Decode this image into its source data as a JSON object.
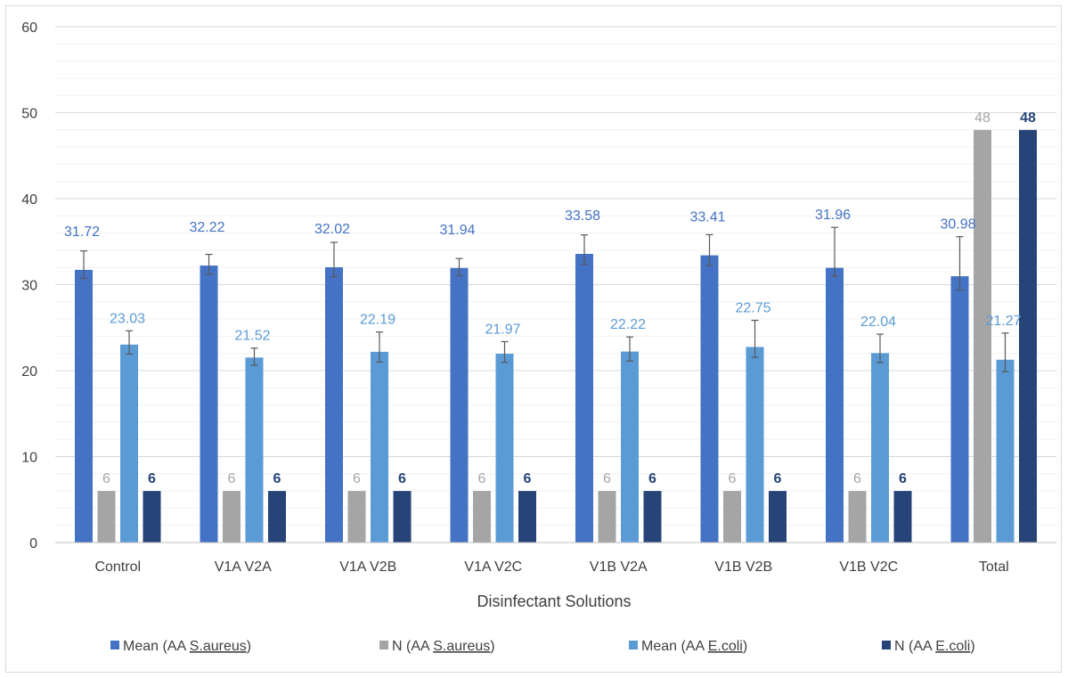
{
  "chart_data": {
    "type": "bar",
    "title": "",
    "xlabel": "Disinfectant Solutions",
    "ylabel": "",
    "ylim": [
      0,
      60
    ],
    "yticks": [
      0,
      10,
      20,
      30,
      40,
      50,
      60
    ],
    "minor_gridlines": true,
    "legend_position": "bottom",
    "categories": [
      "Control",
      "V1A V2A",
      "V1A V2B",
      "V1A V2C",
      "V1B V2A",
      "V1B V2B",
      "V1B V2C",
      "Total"
    ],
    "series": [
      {
        "name": "Mean (AA S.aureus)",
        "legend_prefix": "Mean (AA ",
        "legend_underlined": "S.aureus",
        "legend_suffix": ")",
        "color": "#4472c4",
        "label_color": "#4472c4",
        "label_bold": false,
        "values": [
          31.72,
          32.22,
          32.02,
          31.94,
          33.58,
          33.41,
          31.96,
          30.98
        ],
        "labels": [
          "31.72",
          "32.22",
          "32.02",
          "31.94",
          "33.58",
          "33.41",
          "31.96",
          "30.98"
        ],
        "error_low": [
          1.0,
          1.0,
          1.1,
          0.9,
          1.2,
          1.2,
          1.0,
          1.6
        ],
        "error_high": [
          2.2,
          1.3,
          2.9,
          1.1,
          2.2,
          2.4,
          4.7,
          4.6
        ]
      },
      {
        "name": "N (AA S.aureus)",
        "legend_prefix": "N (AA ",
        "legend_underlined": "S.aureus",
        "legend_suffix": ")",
        "color": "#a5a5a5",
        "label_color": "#a5a5a5",
        "label_bold": false,
        "values": [
          6,
          6,
          6,
          6,
          6,
          6,
          6,
          48
        ],
        "labels": [
          "6",
          "6",
          "6",
          "6",
          "6",
          "6",
          "6",
          "48"
        ]
      },
      {
        "name": "Mean (AA E.coli)",
        "legend_prefix": "Mean (AA ",
        "legend_underlined": "E.coli",
        "legend_suffix": ")",
        "color": "#5b9bd5",
        "label_color": "#5b9bd5",
        "label_bold": false,
        "values": [
          23.03,
          21.52,
          22.19,
          21.97,
          22.22,
          22.75,
          22.04,
          21.27
        ],
        "labels": [
          "23.03",
          "21.52",
          "22.19",
          "21.97",
          "22.22",
          "22.75",
          "22.04",
          "21.27"
        ],
        "error_low": [
          1.1,
          0.9,
          1.2,
          1.0,
          1.1,
          1.2,
          1.1,
          1.4
        ],
        "error_high": [
          1.6,
          1.1,
          2.3,
          1.4,
          1.7,
          3.1,
          2.2,
          3.1
        ]
      },
      {
        "name": "N (AA E.coli)",
        "legend_prefix": "N (AA ",
        "legend_underlined": "E.coli",
        "legend_suffix": ")",
        "color": "#264478",
        "label_color": "#264478",
        "label_bold": true,
        "values": [
          6,
          6,
          6,
          6,
          6,
          6,
          6,
          48
        ],
        "labels": [
          "6",
          "6",
          "6",
          "6",
          "6",
          "6",
          "6",
          "48"
        ]
      }
    ]
  }
}
